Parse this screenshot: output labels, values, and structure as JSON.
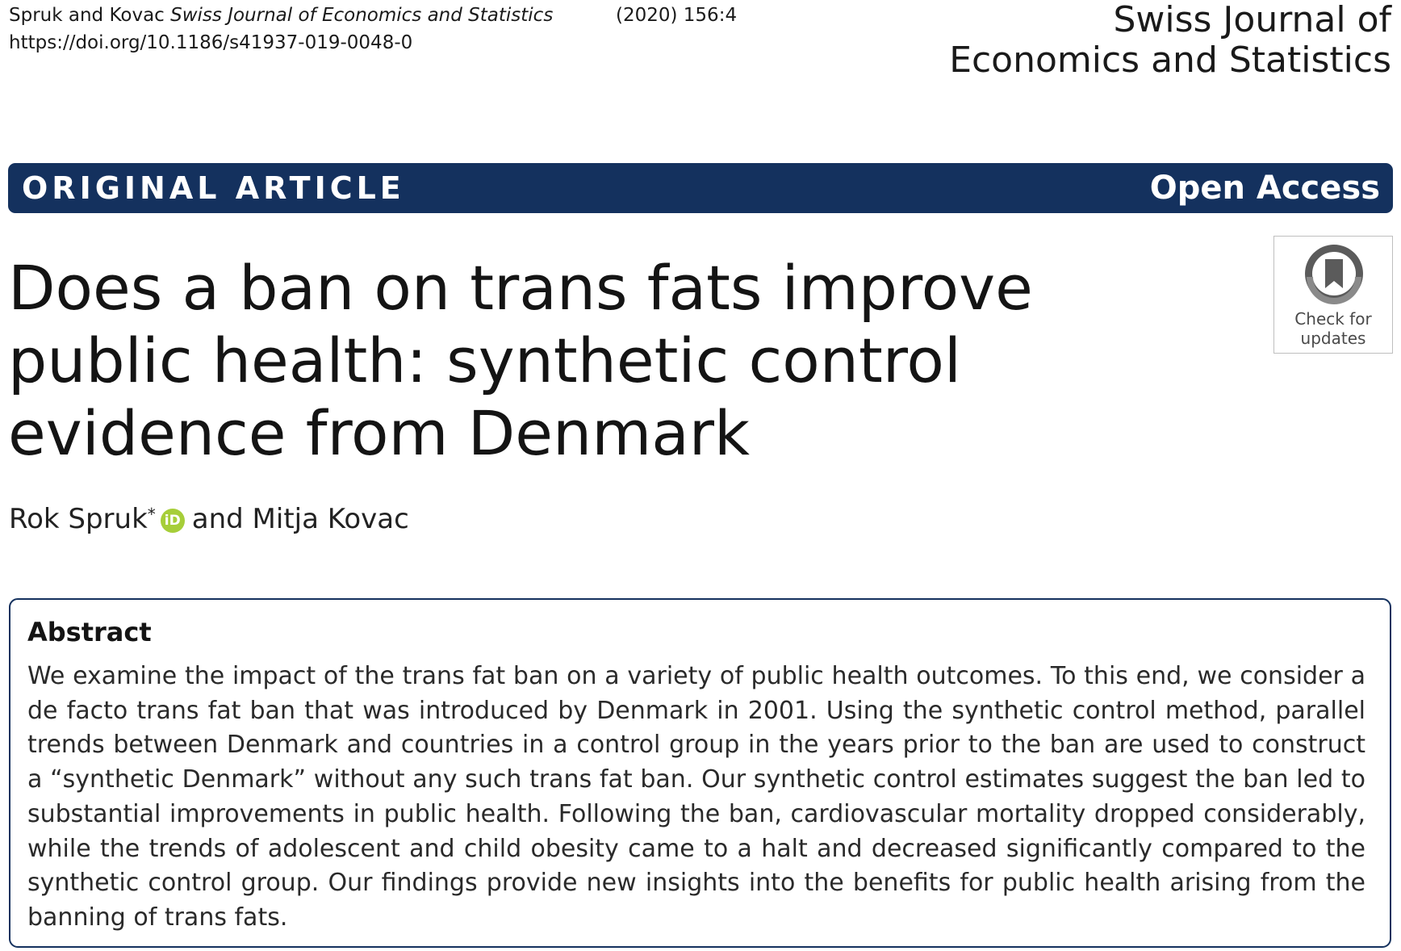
{
  "header": {
    "authors_short": "Spruk and Kovac",
    "journal_italic": "Swiss Journal of Economics and Statistics",
    "citation": "(2020) 156:4",
    "doi": "https://doi.org/10.1186/s41937-019-0048-0",
    "journal_line1": "Swiss Journal of",
    "journal_line2": "Economics and Statistics"
  },
  "banner": {
    "article_type": "ORIGINAL ARTICLE",
    "access": "Open Access"
  },
  "check_updates": {
    "line1": "Check for",
    "line2": "updates",
    "icon": "bookmark-icon"
  },
  "title": "Does a ban on trans fats improve public health: synthetic control evidence from Denmark",
  "authors": {
    "first": "Rok Spruk",
    "marker": "*",
    "orcid": "iD",
    "rest": "and Mitja Kovac"
  },
  "abstract": {
    "heading": "Abstract",
    "text": "We examine the impact of the trans fat ban on a variety of public health outcomes. To this end, we consider a de facto trans fat ban that was introduced by Denmark in 2001. Using the synthetic control method, parallel trends between Denmark and countries in a control group in the years prior to the ban are used to construct a “synthetic Denmark” without any such trans fat ban. Our synthetic control estimates suggest the ban led to substantial improvements in public health. Following the ban, cardiovascular mortality dropped considerably, while the trends of adolescent and child obesity came to a halt and decreased significantly compared to the synthetic control group. Our findings provide new insights into the benefits for public health arising from the banning of trans fats."
  },
  "colors": {
    "banner_bg": "#14315e",
    "orcid_green": "#a6ce39"
  }
}
